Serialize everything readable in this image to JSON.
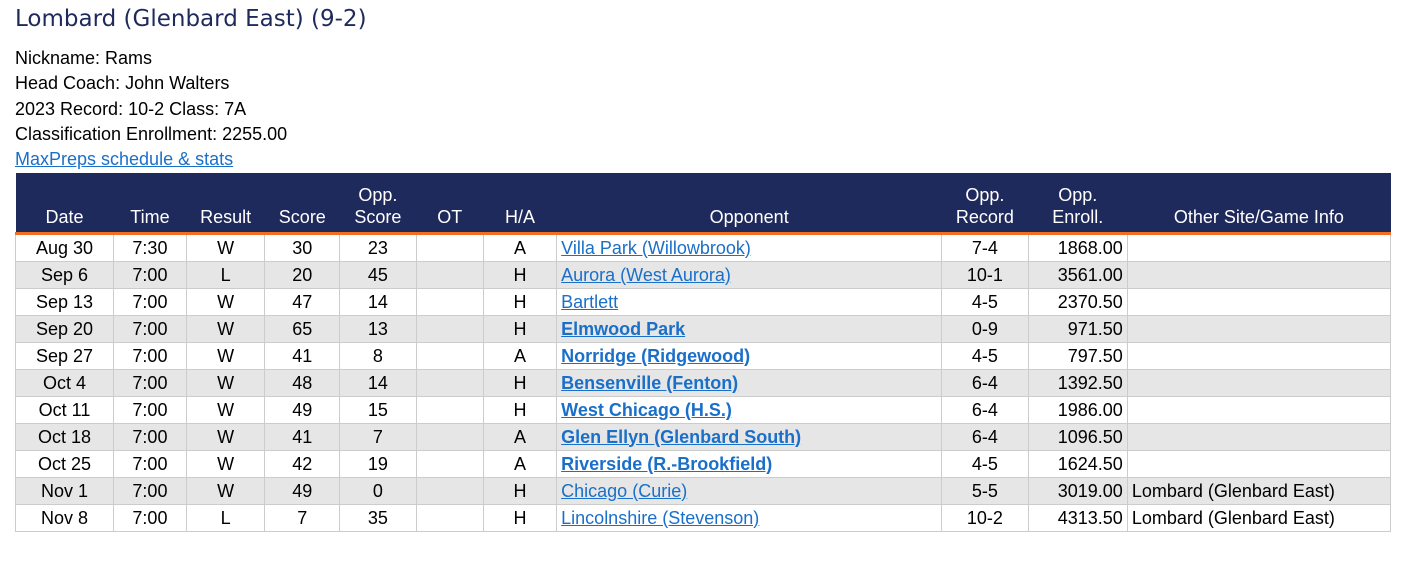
{
  "header": {
    "title": "Lombard (Glenbard East) (9-2)",
    "lines": [
      "Nickname: Rams",
      "Head Coach: John Walters",
      "2023 Record: 10-2 Class: 7A",
      "Classification Enrollment: 2255.00"
    ],
    "link": "MaxPreps schedule & stats"
  },
  "table": {
    "columns": [
      "Date",
      "Time",
      "Result",
      "Score",
      "Opp.\nScore",
      "OT",
      "H/A",
      "Opponent",
      "Opp.\nRecord",
      "Opp.\nEnroll.",
      "Other Site/Game Info"
    ],
    "rows": [
      [
        "Aug 30",
        "7:30",
        "W",
        30,
        23,
        null,
        "A",
        "Villa Park (Willowbrook)",
        "7-4",
        "1868.00",
        null
      ],
      [
        "Sep 6",
        "7:00",
        "L",
        20,
        45,
        null,
        "H",
        "Aurora (West Aurora)",
        "10-1",
        "3561.00",
        null
      ],
      [
        "Sep 13",
        "7:00",
        "W",
        47,
        14,
        null,
        "H",
        "Bartlett",
        "4-5",
        "2370.50",
        null
      ],
      [
        "Sep 20",
        "7:00",
        "W",
        65,
        13,
        null,
        "H",
        "Elmwood Park",
        "0-9",
        "971.50",
        null
      ],
      [
        "Sep 27",
        "7:00",
        "W",
        41,
        8,
        null,
        "A",
        "Norridge (Ridgewood)",
        "4-5",
        "797.50",
        null
      ],
      [
        "Oct 4",
        "7:00",
        "W",
        48,
        14,
        null,
        "H",
        "Bensenville (Fenton)",
        "6-4",
        "1392.50",
        null
      ],
      [
        "Oct 11",
        "7:00",
        "W",
        49,
        15,
        null,
        "H",
        "West Chicago (H.S.)",
        "6-4",
        "1986.00",
        null
      ],
      [
        "Oct 18",
        "7:00",
        "W",
        41,
        7,
        null,
        "A",
        "Glen Ellyn (Glenbard South)",
        "6-4",
        "1096.50",
        null
      ],
      [
        "Oct 25",
        "7:00",
        "W",
        42,
        19,
        null,
        "A",
        "Riverside (R.-Brookfield)",
        "4-5",
        "1624.50",
        null
      ],
      [
        "Nov 1",
        "7:00",
        "W",
        49,
        0,
        null,
        "H",
        "Chicago (Curie)",
        "5-5",
        "3019.00",
        "Lombard (Glenbard East)"
      ],
      [
        "Nov 8",
        "7:00",
        "L",
        7,
        35,
        null,
        "H",
        "Lincolnshire (Stevenson)",
        "10-2",
        "4313.50",
        "Lombard (Glenbard East)"
      ]
    ],
    "opponent_bold": [
      false,
      false,
      false,
      true,
      true,
      true,
      true,
      true,
      true,
      false,
      false
    ]
  }
}
